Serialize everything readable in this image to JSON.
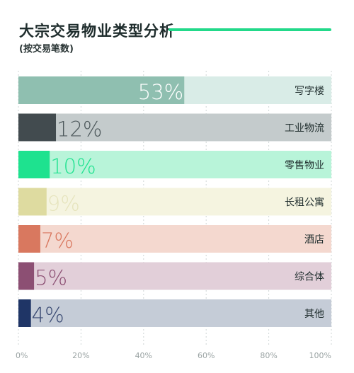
{
  "header": {
    "title": "大宗交易物业类型分析",
    "subtitle": "(按交易笔数)",
    "rule_color": "#22d98a"
  },
  "chart_data": {
    "type": "bar",
    "orientation": "horizontal",
    "title": "大宗交易物业类型分析",
    "subtitle": "(按交易笔数)",
    "xlim": [
      0,
      100
    ],
    "x_ticks": [
      "0%",
      "20%",
      "40%",
      "60%",
      "80%",
      "100%"
    ],
    "grid": true,
    "categories": [
      "写字楼",
      "工业物流",
      "零售物业",
      "长租公寓",
      "酒店",
      "综合体",
      "其他"
    ],
    "values": [
      53,
      12,
      10,
      9,
      7,
      5,
      4
    ],
    "value_labels": [
      "53%",
      "12%",
      "10%",
      "9%",
      "7%",
      "5%",
      "4%"
    ],
    "colors": [
      "#8fbfb0",
      "#424b4f",
      "#1ee28f",
      "#dedba0",
      "#d9785f",
      "#8c4f73",
      "#1f3566"
    ],
    "track_colors": [
      "#d9ece7",
      "#c4cbcc",
      "#b8f4d9",
      "#f5f4e0",
      "#f4d8cf",
      "#e2cfd9",
      "#c5ccd7"
    ],
    "label_colors": [
      "#ffffff",
      "#4f5a5d",
      "#1ee28f",
      "#e6e4bd",
      "#d9785f",
      "#8c4f73",
      "#3a4a73"
    ]
  }
}
